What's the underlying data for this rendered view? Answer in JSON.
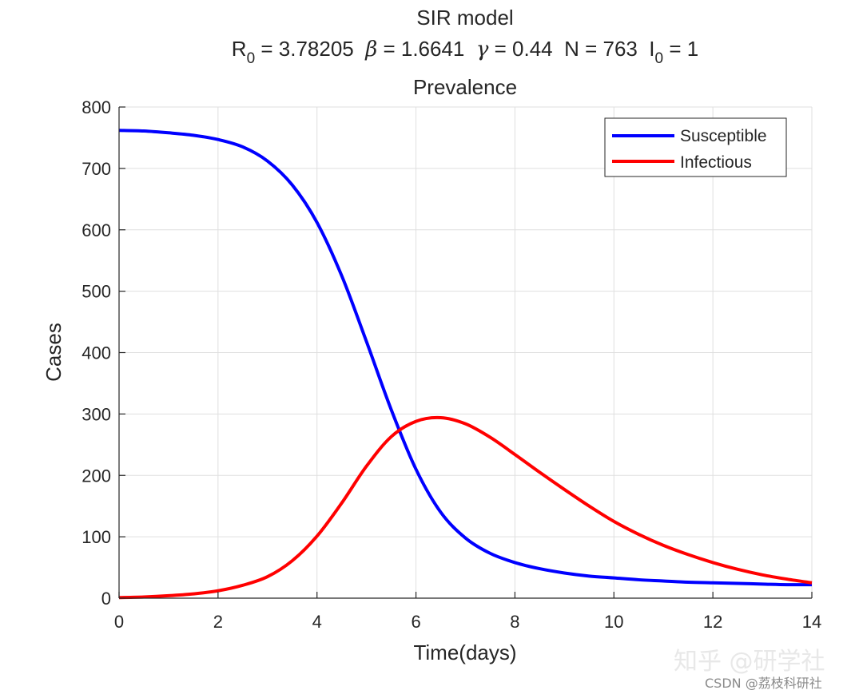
{
  "titles": {
    "line1": "SIR model",
    "line2": {
      "r0_label": "R",
      "r0_sub": "0",
      "r0_value": " = 3.78205  ",
      "beta_symbol": "β",
      "beta_value": " = 1.6641  ",
      "gamma_symbol": "γ",
      "gamma_value": " = 0.44  N = 763  I",
      "i0_sub": "0",
      "i0_value": " = 1"
    },
    "line3": "Prevalence"
  },
  "watermark": {
    "main": "知乎 @研学社",
    "sub": "CSDN @荔枝科研社"
  },
  "chart_data": {
    "type": "line",
    "title": "Prevalence",
    "xlabel": "Time(days)",
    "ylabel": "Cases",
    "xlim": [
      0,
      14
    ],
    "ylim": [
      0,
      800
    ],
    "xticks": [
      0,
      2,
      4,
      6,
      8,
      10,
      12,
      14
    ],
    "yticks": [
      0,
      100,
      200,
      300,
      400,
      500,
      600,
      700,
      800
    ],
    "grid": true,
    "legend_position": "top-right",
    "x": [
      0,
      0.5,
      1,
      1.5,
      2,
      2.5,
      3,
      3.5,
      4,
      4.5,
      5,
      5.5,
      6,
      6.5,
      7,
      7.5,
      8,
      8.5,
      9,
      9.5,
      10,
      10.5,
      11,
      11.5,
      12,
      12.5,
      13,
      13.5,
      14
    ],
    "series": [
      {
        "name": "Susceptible",
        "color": "#0000ff",
        "values": [
          762,
          761,
          758,
          754,
          747,
          735,
          712,
          673,
          612,
          525,
          418,
          307,
          210,
          140,
          98,
          73,
          58,
          48,
          41,
          36,
          33,
          30,
          28,
          26,
          25,
          24,
          23,
          22,
          22
        ]
      },
      {
        "name": "Infectious",
        "color": "#ff0000",
        "values": [
          1,
          2,
          4,
          7,
          12,
          21,
          35,
          61,
          101,
          155,
          215,
          263,
          288,
          294,
          284,
          262,
          234,
          205,
          177,
          150,
          125,
          104,
          86,
          71,
          58,
          47,
          38,
          31,
          25
        ]
      }
    ]
  }
}
